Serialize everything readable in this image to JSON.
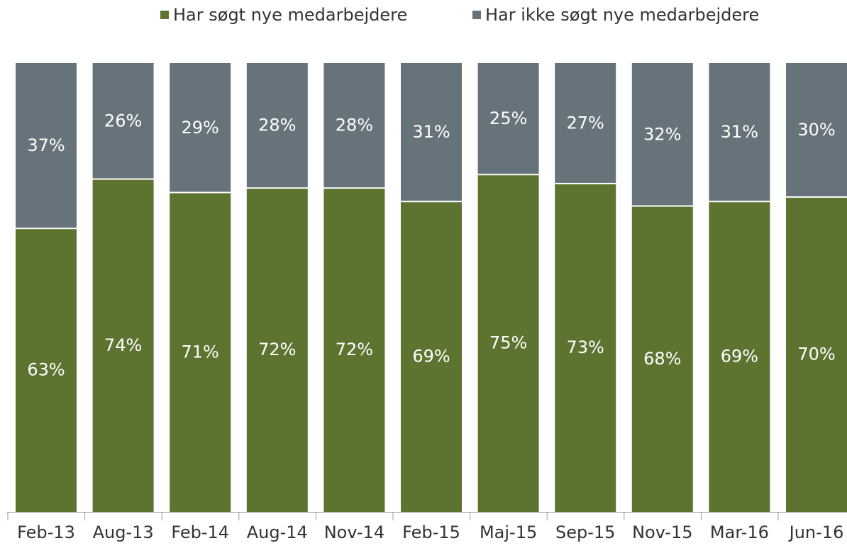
{
  "chart_data": {
    "type": "stacked_bar",
    "categories": [
      "Feb-13",
      "Aug-13",
      "Feb-14",
      "Aug-14",
      "Nov-14",
      "Feb-15",
      "Maj-15",
      "Sep-15",
      "Nov-15",
      "Mar-16",
      "Jun-16"
    ],
    "series": [
      {
        "name": "Har søgt nye medarbejdere",
        "color": "#5d7431",
        "values": [
          63,
          74,
          71,
          72,
          72,
          69,
          75,
          73,
          68,
          69,
          70
        ],
        "value_labels": [
          "63%",
          "74%",
          "71%",
          "72%",
          "72%",
          "69%",
          "75%",
          "73%",
          "68%",
          "69%",
          "70%"
        ]
      },
      {
        "name": "Har ikke søgt nye medarbejdere",
        "color": "#67737b",
        "values": [
          37,
          26,
          29,
          28,
          28,
          31,
          25,
          27,
          32,
          31,
          30
        ],
        "value_labels": [
          "37%",
          "26%",
          "29%",
          "28%",
          "28%",
          "31%",
          "25%",
          "27%",
          "32%",
          "31%",
          "30%"
        ]
      }
    ],
    "ylim": [
      0,
      100
    ],
    "legend": "top"
  }
}
